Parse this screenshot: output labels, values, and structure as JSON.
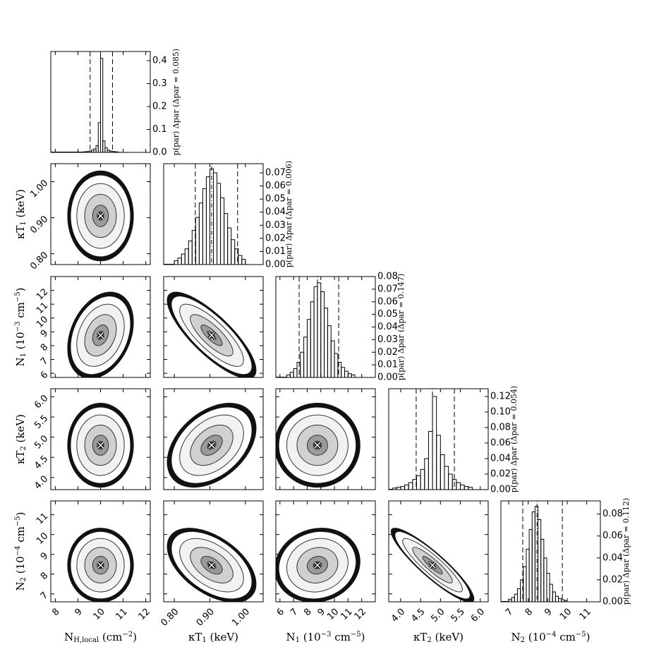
{
  "chart_data": {
    "type": "corner",
    "parameters": [
      {
        "label": [
          {
            "text": "N"
          },
          {
            "text": "H,local",
            "sub": true
          },
          {
            "text": " (cm"
          },
          {
            "text": "−2",
            "sup": true
          },
          {
            "text": ")"
          }
        ],
        "lim": [
          7.8,
          12.2
        ],
        "ticks": [
          8,
          9,
          10,
          11,
          12
        ],
        "best": 10.0,
        "interval": [
          9.54,
          10.53
        ],
        "sigma": 0.35
      },
      {
        "label": [
          {
            "text": "κT"
          },
          {
            "text": "1",
            "sub": true
          },
          {
            "text": " (keV)"
          }
        ],
        "lim": [
          0.77,
          1.05
        ],
        "ticks": [
          {
            "value": 0.8,
            "label": "0.80"
          },
          {
            "value": 0.9,
            "label": "0.90"
          },
          {
            "value": 1.0,
            "label": "1.00"
          }
        ],
        "best": 0.905,
        "interval": [
          0.859,
          0.978
        ],
        "sigma": 0.03
      },
      {
        "label": [
          {
            "text": "N"
          },
          {
            "text": "1",
            "sub": true
          },
          {
            "text": " (10"
          },
          {
            "text": "−3",
            "sup": true
          },
          {
            "text": " cm"
          },
          {
            "text": "−5",
            "sup": true
          },
          {
            "text": ")"
          }
        ],
        "lim": [
          5.7,
          13.0
        ],
        "ticks": [
          6,
          7,
          8,
          9,
          10,
          11,
          12
        ],
        "best": 8.75,
        "interval": [
          7.41,
          10.31
        ],
        "sigma": 0.75
      },
      {
        "label": [
          {
            "text": "κT"
          },
          {
            "text": "2",
            "sub": true
          },
          {
            "text": " (keV)"
          }
        ],
        "lim": [
          3.7,
          6.2
        ],
        "ticks": [
          {
            "value": 4,
            "label": "4.0"
          },
          4.5,
          {
            "value": 5,
            "label": "5.0"
          },
          5.5,
          {
            "value": 6,
            "label": "6.0"
          }
        ],
        "best": 4.8,
        "interval": [
          4.39,
          5.35
        ],
        "sigma": 0.25
      },
      {
        "label": [
          {
            "text": "N"
          },
          {
            "text": "2",
            "sub": true
          },
          {
            "text": " (10"
          },
          {
            "text": "−4",
            "sup": true
          },
          {
            "text": " cm"
          },
          {
            "text": "−5",
            "sup": true
          },
          {
            "text": ")"
          }
        ],
        "lim": [
          6.6,
          11.7
        ],
        "ticks": [
          7,
          8,
          9,
          10,
          11
        ],
        "best": 8.45,
        "interval": [
          7.72,
          9.75
        ],
        "sigma": 0.45
      }
    ],
    "histograms": [
      {
        "ylabel": "p(par) Δpar (Δpar = 0.085)",
        "ylim": [
          0,
          0.44
        ],
        "yticks": [
          {
            "value": 0,
            "label": "0.0"
          },
          0.1,
          0.2,
          0.3,
          0.4
        ],
        "bins": [
          9.2,
          9.3,
          9.4,
          9.5,
          9.6,
          9.7,
          9.8,
          9.9,
          10.0,
          10.1,
          10.2,
          10.3,
          10.4,
          10.5,
          10.6,
          10.7,
          10.8
        ],
        "values": [
          0.002,
          0.003,
          0.004,
          0.006,
          0.01,
          0.015,
          0.03,
          0.13,
          0.41,
          0.05,
          0.02,
          0.01,
          0.006,
          0.004,
          0.003,
          0.002
        ]
      },
      {
        "ylabel": "p(par) Δpar (Δpar = 0.006)",
        "ylim": [
          0,
          0.077
        ],
        "yticks": [
          {
            "value": 0,
            "label": "0.00"
          },
          {
            "value": 0.01,
            "label": "0.01"
          },
          {
            "value": 0.02,
            "label": "0.02"
          },
          {
            "value": 0.03,
            "label": "0.03"
          },
          {
            "value": 0.04,
            "label": "0.04"
          },
          {
            "value": 0.05,
            "label": "0.05"
          },
          {
            "value": 0.06,
            "label": "0.06"
          },
          {
            "value": 0.07,
            "label": "0.07"
          }
        ],
        "bins": [
          0.8,
          0.81,
          0.82,
          0.83,
          0.84,
          0.85,
          0.86,
          0.87,
          0.88,
          0.89,
          0.9,
          0.91,
          0.92,
          0.93,
          0.94,
          0.95,
          0.96,
          0.97,
          0.98,
          0.99,
          1.0
        ],
        "values": [
          0.003,
          0.005,
          0.008,
          0.012,
          0.018,
          0.026,
          0.036,
          0.047,
          0.058,
          0.067,
          0.073,
          0.07,
          0.062,
          0.051,
          0.039,
          0.028,
          0.019,
          0.012,
          0.007,
          0.004
        ]
      },
      {
        "ylabel": "p(par) Δpar (Δpar = 0.147)",
        "ylim": [
          0,
          0.08
        ],
        "yticks": [
          {
            "value": 0,
            "label": "0.00"
          },
          {
            "value": 0.01,
            "label": "0.01"
          },
          {
            "value": 0.02,
            "label": "0.02"
          },
          {
            "value": 0.03,
            "label": "0.03"
          },
          {
            "value": 0.04,
            "label": "0.04"
          },
          {
            "value": 0.05,
            "label": "0.05"
          },
          {
            "value": 0.06,
            "label": "0.06"
          },
          {
            "value": 0.07,
            "label": "0.07"
          },
          {
            "value": 0.08,
            "label": "0.08"
          }
        ],
        "bins": [
          6.5,
          6.75,
          7.0,
          7.25,
          7.5,
          7.75,
          8.0,
          8.25,
          8.5,
          8.75,
          9.0,
          9.25,
          9.5,
          9.75,
          10.0,
          10.25,
          10.5,
          10.75,
          11.0,
          11.25,
          11.5
        ],
        "values": [
          0.002,
          0.004,
          0.007,
          0.012,
          0.02,
          0.032,
          0.046,
          0.06,
          0.072,
          0.075,
          0.068,
          0.055,
          0.041,
          0.029,
          0.019,
          0.012,
          0.008,
          0.005,
          0.003,
          0.002
        ]
      },
      {
        "ylabel": "p(par) Δpar (Δpar = 0.054)",
        "ylim": [
          0,
          0.13
        ],
        "yticks": [
          {
            "value": 0,
            "label": "0.00"
          },
          {
            "value": 0.02,
            "label": "0.02"
          },
          {
            "value": 0.04,
            "label": "0.04"
          },
          {
            "value": 0.06,
            "label": "0.06"
          },
          {
            "value": 0.08,
            "label": "0.08"
          },
          {
            "value": 0.1,
            "label": "0.10"
          },
          {
            "value": 0.12,
            "label": "0.12"
          }
        ],
        "bins": [
          3.8,
          3.9,
          4.0,
          4.1,
          4.2,
          4.3,
          4.4,
          4.5,
          4.6,
          4.7,
          4.8,
          4.9,
          5.0,
          5.1,
          5.2,
          5.3,
          5.4,
          5.5,
          5.6,
          5.7,
          5.8
        ],
        "values": [
          0.002,
          0.003,
          0.004,
          0.006,
          0.009,
          0.013,
          0.018,
          0.026,
          0.04,
          0.075,
          0.12,
          0.07,
          0.045,
          0.03,
          0.02,
          0.013,
          0.009,
          0.006,
          0.004,
          0.003
        ]
      },
      {
        "ylabel": "p(par) Δpar (Δpar = 0.112)",
        "ylim": [
          0,
          0.092
        ],
        "yticks": [
          {
            "value": 0,
            "label": "0.00"
          },
          {
            "value": 0.02,
            "label": "0.02"
          },
          {
            "value": 0.04,
            "label": "0.04"
          },
          {
            "value": 0.06,
            "label": "0.06"
          },
          {
            "value": 0.08,
            "label": "0.08"
          }
        ],
        "bins": [
          7.0,
          7.15,
          7.3,
          7.45,
          7.6,
          7.75,
          7.9,
          8.05,
          8.2,
          8.35,
          8.5,
          8.65,
          8.8,
          8.95,
          9.1,
          9.25,
          9.4,
          9.55,
          9.7,
          9.85,
          10.0
        ],
        "values": [
          0.002,
          0.004,
          0.007,
          0.012,
          0.02,
          0.032,
          0.048,
          0.066,
          0.082,
          0.087,
          0.075,
          0.057,
          0.04,
          0.026,
          0.016,
          0.009,
          0.005,
          0.003,
          0.002,
          0.001
        ]
      }
    ],
    "correlations": [
      [
        0.0
      ],
      [
        0.3,
        -0.8
      ],
      [
        0.0,
        0.4,
        0.0
      ],
      [
        0.0,
        -0.5,
        0.1,
        -0.9
      ]
    ]
  }
}
